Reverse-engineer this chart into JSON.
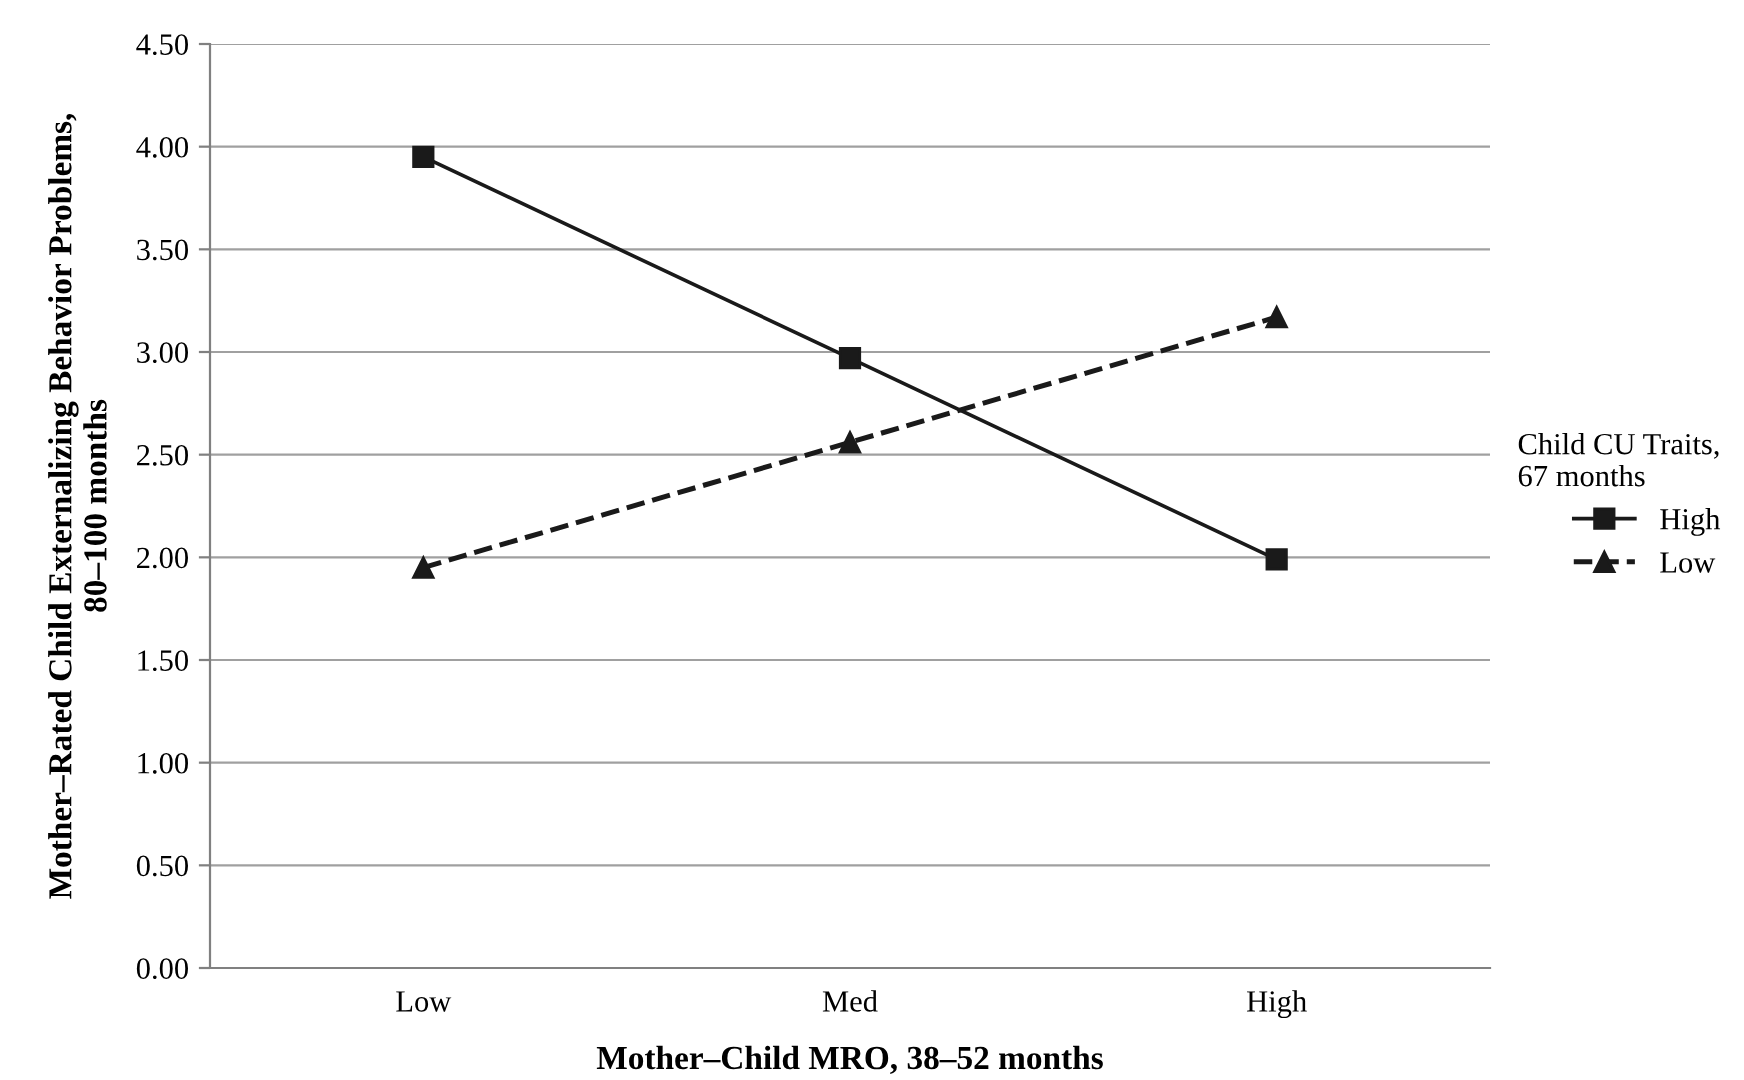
{
  "chart_data": {
    "type": "line",
    "xlabel": "Mother–Child MRO, 38–52 months",
    "ylabel": "Mother–Rated Child Externalizing Behavior Problems,\n80–100 months",
    "legend_title": "Child CU Traits,\n67 months",
    "legend": "right",
    "grid": "y",
    "categories": [
      "Low",
      "Med",
      "High"
    ],
    "ylim": [
      0,
      4.5
    ],
    "yticks": [
      {
        "value": 0,
        "label": "0.00"
      },
      {
        "value": 0.5,
        "label": "0.50"
      },
      {
        "value": 1,
        "label": "1.00"
      },
      {
        "value": 1.5,
        "label": "1.50"
      },
      {
        "value": 2,
        "label": "2.00"
      },
      {
        "value": 2.5,
        "label": "2.50"
      },
      {
        "value": 3,
        "label": "3.00"
      },
      {
        "value": 3.5,
        "label": "3.50"
      },
      {
        "value": 4,
        "label": "4.00"
      },
      {
        "value": 4.5,
        "label": "4.50"
      }
    ],
    "series": [
      {
        "name": "High",
        "color": "#1a1a1a",
        "marker": "square",
        "line_style": "solid",
        "values": [
          3.95,
          2.97,
          1.99
        ]
      },
      {
        "name": "Low",
        "color": "#1a1a1a",
        "marker": "triangle",
        "line_style": "dashed",
        "values": [
          1.95,
          2.56,
          3.17
        ]
      }
    ]
  }
}
